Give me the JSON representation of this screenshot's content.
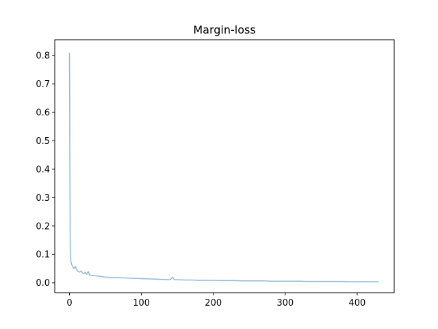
{
  "chart_data": {
    "type": "line",
    "title": "Margin-loss",
    "xlabel": "",
    "ylabel": "",
    "xlim": [
      -20.5,
      451.5
    ],
    "ylim": [
      -0.0345,
      0.8555
    ],
    "xticks": [
      0,
      100,
      200,
      300,
      400
    ],
    "yticks": [
      0.0,
      0.1,
      0.2,
      0.3,
      0.4,
      0.5,
      0.6,
      0.7,
      0.8
    ],
    "xtick_labels": [
      "0",
      "100",
      "200",
      "300",
      "400"
    ],
    "ytick_labels": [
      "0.0",
      "0.1",
      "0.2",
      "0.3",
      "0.4",
      "0.5",
      "0.6",
      "0.7",
      "0.8"
    ],
    "grid": false,
    "legend": "none",
    "series": [
      {
        "color": "#8fb9d9",
        "x": [
          0,
          1,
          2,
          3,
          4,
          5,
          6,
          8,
          10,
          12,
          14,
          16,
          18,
          20,
          22,
          24,
          26,
          28,
          30,
          35,
          40,
          45,
          50,
          60,
          70,
          80,
          90,
          100,
          110,
          120,
          130,
          140,
          143,
          146,
          150,
          160,
          170,
          180,
          190,
          200,
          210,
          220,
          230,
          240,
          250,
          260,
          270,
          280,
          290,
          300,
          310,
          320,
          330,
          340,
          350,
          360,
          370,
          380,
          390,
          400,
          410,
          420,
          430
        ],
        "y": [
          0.81,
          0.12,
          0.075,
          0.065,
          0.06,
          0.055,
          0.05,
          0.058,
          0.045,
          0.04,
          0.038,
          0.042,
          0.035,
          0.033,
          0.037,
          0.03,
          0.04,
          0.028,
          0.027,
          0.025,
          0.024,
          0.022,
          0.02,
          0.019,
          0.018,
          0.017,
          0.016,
          0.015,
          0.014,
          0.013,
          0.012,
          0.011,
          0.02,
          0.011,
          0.011,
          0.01,
          0.01,
          0.009,
          0.009,
          0.009,
          0.008,
          0.008,
          0.008,
          0.007,
          0.007,
          0.007,
          0.007,
          0.006,
          0.006,
          0.006,
          0.006,
          0.006,
          0.005,
          0.005,
          0.005,
          0.005,
          0.005,
          0.005,
          0.004,
          0.004,
          0.004,
          0.004,
          0.004
        ]
      }
    ]
  }
}
